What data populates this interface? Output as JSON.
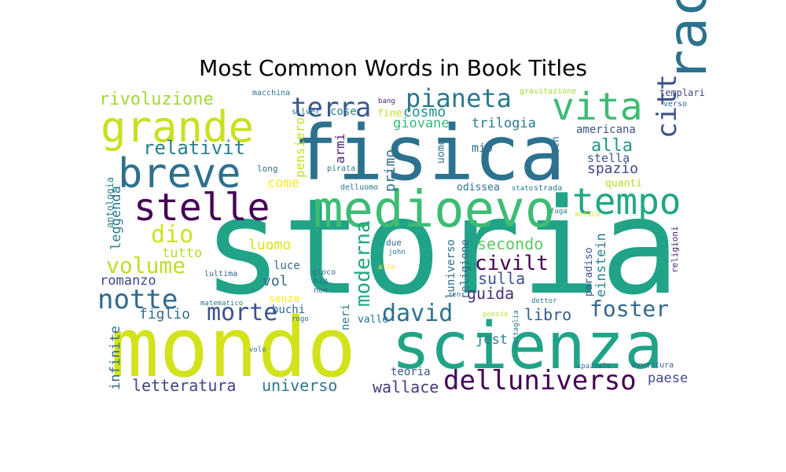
{
  "chart_data": {
    "type": "wordcloud",
    "title": "Most Common Words in Book Titles",
    "colormap": "viridis",
    "background": "#ffffff",
    "words": [
      {
        "text": "storia",
        "rank": 1,
        "color": "#20a386"
      },
      {
        "text": "mondo",
        "rank": 2,
        "color": "#d2e21b"
      },
      {
        "text": "fisica",
        "rank": 3,
        "color": "#2c728e"
      },
      {
        "text": "scienza",
        "rank": 4,
        "color": "#20a386"
      },
      {
        "text": "racconti",
        "rank": 5,
        "color": "#2c728e"
      },
      {
        "text": "medioevo",
        "rank": 6,
        "color": "#3dbc74"
      },
      {
        "text": "grande",
        "rank": 7,
        "color": "#c8e020"
      },
      {
        "text": "vita",
        "rank": 8,
        "color": "#3dbc74"
      },
      {
        "text": "breve",
        "rank": 9,
        "color": "#2d708e"
      },
      {
        "text": "stelle",
        "rank": 10,
        "color": "#440154"
      },
      {
        "text": "tempo",
        "rank": 11,
        "color": "#22a884"
      },
      {
        "text": "delluniverso",
        "rank": 12,
        "color": "#440154"
      },
      {
        "text": "notte",
        "rank": 13,
        "color": "#31688e"
      },
      {
        "text": "terra",
        "rank": 14,
        "color": "#38588c"
      },
      {
        "text": "pianeta",
        "rank": 15,
        "color": "#2a788e"
      },
      {
        "text": "citt",
        "rank": 16,
        "color": "#3b528b"
      },
      {
        "text": "morte",
        "rank": 17,
        "color": "#3b528b"
      },
      {
        "text": "david",
        "rank": 18,
        "color": "#2c728e"
      },
      {
        "text": "foster",
        "rank": 19,
        "color": "#31688e"
      },
      {
        "text": "dio",
        "rank": 20,
        "color": "#cde11d"
      },
      {
        "text": "volume",
        "rank": 21,
        "color": "#bddf26"
      },
      {
        "text": "civilt",
        "rank": 22,
        "color": "#440154"
      },
      {
        "text": "relativit",
        "rank": 23,
        "color": "#27808e"
      },
      {
        "text": "rivoluzione",
        "rank": 24,
        "color": "#a2da37"
      },
      {
        "text": "alla",
        "rank": 25,
        "color": "#1f988b"
      },
      {
        "text": "moderna",
        "rank": 26,
        "color": "#22a884"
      },
      {
        "text": "letteratura",
        "rank": 27,
        "color": "#414487"
      },
      {
        "text": "universo",
        "rank": 28,
        "color": "#2a788e"
      },
      {
        "text": "wallace",
        "rank": 29,
        "color": "#443a83"
      },
      {
        "text": "libro",
        "rank": 30,
        "color": "#365c8d"
      },
      {
        "text": "secondo",
        "rank": 31,
        "color": "#5ec962"
      },
      {
        "text": "sulla",
        "rank": 32,
        "color": "#3b528b"
      },
      {
        "text": "guida",
        "rank": 33,
        "color": "#46327e"
      },
      {
        "text": "spazio",
        "rank": 34,
        "color": "#3e4a89"
      },
      {
        "text": "primo",
        "rank": 35,
        "color": "#2d708e"
      },
      {
        "text": "giovane",
        "rank": 36,
        "color": "#35b779"
      },
      {
        "text": "trilogia",
        "rank": 37,
        "color": "#2a788e"
      },
      {
        "text": "cosmo",
        "rank": 38,
        "color": "#21918c"
      },
      {
        "text": "luomo",
        "rank": 39,
        "color": "#dde318"
      },
      {
        "text": "tutto",
        "rank": 40,
        "color": "#b5de2b"
      },
      {
        "text": "figlio",
        "rank": 41,
        "color": "#2e6e8e"
      },
      {
        "text": "romanzo",
        "rank": 42,
        "color": "#3e4a89"
      },
      {
        "text": "paese",
        "rank": 43,
        "color": "#3e4989"
      },
      {
        "text": "jest",
        "rank": 44,
        "color": "#287d8e"
      },
      {
        "text": "einstein",
        "rank": 45,
        "color": "#25848e"
      },
      {
        "text": "vol",
        "rank": 46,
        "color": "#31688e"
      },
      {
        "text": "leggenda",
        "rank": 47,
        "color": "#2a788e"
      },
      {
        "text": "infinite",
        "rank": 48,
        "color": "#31688e"
      },
      {
        "text": "teoria",
        "rank": 49,
        "color": "#3b528b"
      },
      {
        "text": "come",
        "rank": 50,
        "color": "#fde725"
      },
      {
        "text": "pensiero",
        "rank": 51,
        "color": "#c2df23"
      },
      {
        "text": "armi",
        "rank": 52,
        "color": "#482173"
      },
      {
        "text": "stella",
        "rank": 53,
        "color": "#38598c"
      },
      {
        "text": "americana",
        "rank": 54,
        "color": "#3b528b"
      },
      {
        "text": "luniverso",
        "rank": 55,
        "color": "#2d708e"
      },
      {
        "text": "religione",
        "rank": 56,
        "color": "#31688e"
      },
      {
        "text": "luce",
        "rank": 57,
        "color": "#31688e"
      },
      {
        "text": "buchi",
        "rank": 58,
        "color": "#31688e"
      },
      {
        "text": "neri",
        "rank": 59,
        "color": "#2a788e"
      },
      {
        "text": "paradiso",
        "rank": 60,
        "color": "#3b528b"
      },
      {
        "text": "macbeth",
        "rank": 61,
        "color": "#2d708e"
      },
      {
        "text": "quanti",
        "rank": 62,
        "color": "#b5de2b"
      },
      {
        "text": "mio",
        "rank": 63,
        "color": "#31688e"
      },
      {
        "text": "uomo",
        "rank": 64,
        "color": "#2e6e8e"
      },
      {
        "text": "odissea",
        "rank": 65,
        "color": "#2c728e"
      },
      {
        "text": "cose",
        "rank": 66,
        "color": "#26828e"
      },
      {
        "text": "fine",
        "rank": 67,
        "color": "#bddf26"
      },
      {
        "text": "senza",
        "rank": 68,
        "color": "#fde725"
      },
      {
        "text": "valle",
        "rank": 69,
        "color": "#2d708e"
      },
      {
        "text": "antologia",
        "rank": 70,
        "color": "#25848e"
      },
      {
        "text": "religioni",
        "rank": 71,
        "color": "#482576"
      },
      {
        "text": "templari",
        "rank": 72,
        "color": "#3e4a89"
      },
      {
        "text": "verso",
        "rank": 73,
        "color": "#33638d"
      },
      {
        "text": "macchina",
        "rank": 74,
        "color": "#2a788e"
      },
      {
        "text": "bang",
        "rank": 75,
        "color": "#482475"
      },
      {
        "text": "silver",
        "rank": 76,
        "color": "#2a788e"
      },
      {
        "text": "gravitazione",
        "rank": 77,
        "color": "#a0da39"
      },
      {
        "text": "long",
        "rank": 78,
        "color": "#31688e"
      },
      {
        "text": "pirata",
        "rank": 79,
        "color": "#2a788e"
      },
      {
        "text": "delluomo",
        "rank": 80,
        "color": "#2a788e"
      },
      {
        "text": "stato",
        "rank": 81,
        "color": "#2a788e"
      },
      {
        "text": "strada",
        "rank": 82,
        "color": "#2a788e"
      },
      {
        "text": "fuga",
        "rank": 83,
        "color": "#2a788e"
      },
      {
        "text": "antico",
        "rank": 84,
        "color": "#dde318"
      },
      {
        "text": "lultima",
        "rank": 85,
        "color": "#31688e"
      },
      {
        "text": "gioco",
        "rank": 86,
        "color": "#2e6e8e"
      },
      {
        "text": "big",
        "rank": 87,
        "color": "#2e6e8e"
      },
      {
        "text": "non",
        "rank": 88,
        "color": "#2e6e8e"
      },
      {
        "text": "due",
        "rank": 89,
        "color": "#31688e"
      },
      {
        "text": "john",
        "rank": 90,
        "color": "#2a788e"
      },
      {
        "text": "alle",
        "rank": 91,
        "color": "#fde725"
      },
      {
        "text": "matematico",
        "rank": 92,
        "color": "#2a788e"
      },
      {
        "text": "rogo",
        "rank": 93,
        "color": "#2e6e8e"
      },
      {
        "text": "zen",
        "rank": 94,
        "color": "#2e6e8e"
      },
      {
        "text": "poesie",
        "rank": 95,
        "color": "#b5de2b"
      },
      {
        "text": "battaglia",
        "rank": 96,
        "color": "#2a788e"
      },
      {
        "text": "dottor",
        "rank": 97,
        "color": "#2a788e"
      },
      {
        "text": "volo",
        "rank": 98,
        "color": "#2e6e8e"
      },
      {
        "text": "spaziale",
        "rank": 99,
        "color": "#2e6e8e"
      },
      {
        "text": "avventura",
        "rank": 100,
        "color": "#33638d"
      }
    ]
  }
}
